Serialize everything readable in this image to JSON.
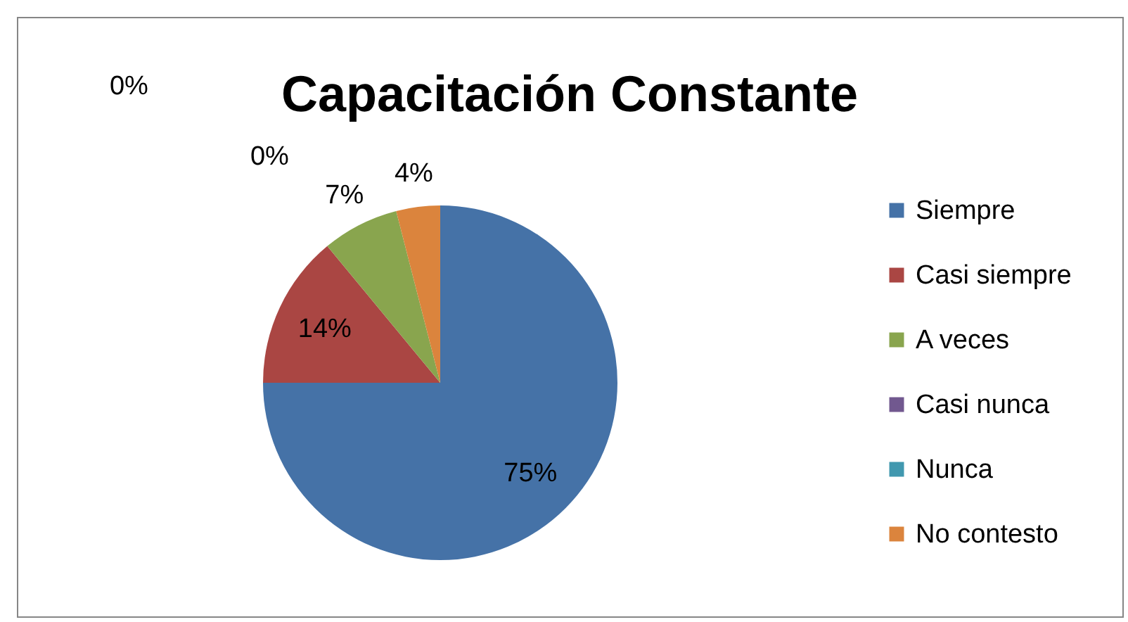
{
  "chart_data": {
    "type": "pie",
    "title": "Capacitación Constante",
    "categories": [
      "Siempre",
      "Casi siempre",
      "A veces",
      "Casi nunca",
      "Nunca",
      "No contesto"
    ],
    "values": [
      75,
      14,
      7,
      0,
      0,
      4
    ],
    "colors": [
      "#4572a7",
      "#aa4643",
      "#89a54e",
      "#71588f",
      "#4198af",
      "#db843d"
    ],
    "value_labels": [
      "75%",
      "14%",
      "7%",
      "0%",
      "0%",
      "4%"
    ],
    "legend": "right"
  }
}
